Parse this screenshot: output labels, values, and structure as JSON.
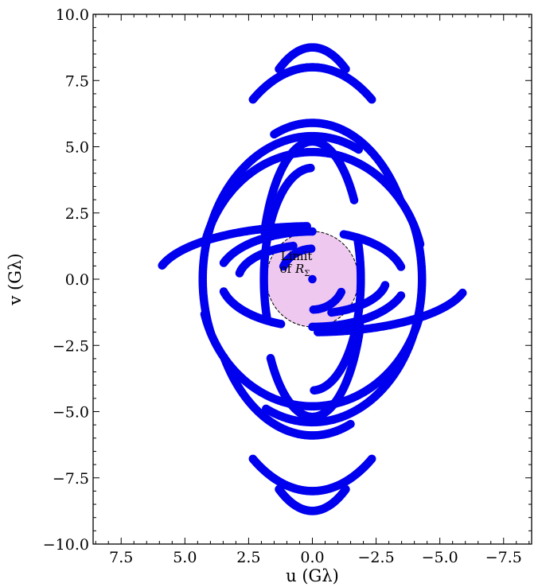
{
  "chart_data": {
    "type": "scatter",
    "xlabel": "u (Gλ)",
    "ylabel": "v (Gλ)",
    "xlim": [
      8.6,
      -8.6
    ],
    "ylim": [
      -10.0,
      10.0
    ],
    "x_ticks": [
      7.5,
      5.0,
      2.5,
      0.0,
      -2.5,
      -5.0,
      -7.5
    ],
    "x_tick_labels": [
      "7.5",
      "5.0",
      "2.5",
      "0.0",
      "−2.5",
      "−5.0",
      "−7.5"
    ],
    "y_ticks": [
      10.0,
      7.5,
      5.0,
      2.5,
      0.0,
      -2.5,
      -5.0,
      -7.5,
      -10.0
    ],
    "y_tick_labels": [
      "10.0",
      "7.5",
      "5.0",
      "2.5",
      "0.0",
      "−2.5",
      "−5.0",
      "−7.5",
      "−10.0"
    ],
    "grid": false,
    "point_color": "#0000ee",
    "annotation": {
      "line1": "Limit",
      "line2": "of ",
      "symbol": "R",
      "subscript": "Σ",
      "region": {
        "center_u": 0.0,
        "center_v": 0.0,
        "radius": 1.8
      },
      "fill": "#efc8ef",
      "edge": "#000000"
    },
    "series": [
      {
        "points": [
          [
            0.0,
            0.0
          ]
        ]
      },
      {
        "arcs": [
          {
            "a": 4.4,
            "b": 8.0,
            "t0": 122,
            "t1": 58
          },
          {
            "a": 3.1,
            "b": 8.75,
            "t0": 115,
            "t1": 65
          },
          {
            "a": 4.4,
            "b": 4.8,
            "t0": 164,
            "t1": 16
          },
          {
            "a": 4.0,
            "b": 5.9,
            "t0": 150,
            "t1": 68
          },
          {
            "a": 2.0,
            "b": 5.2,
            "t0": 145,
            "t1": 20
          },
          {
            "a": 4.3,
            "b": 5.4,
            "t0": 115,
            "t1": -22
          },
          {
            "a": 1.9,
            "b": 4.2,
            "t0": 88,
            "t1": -20
          },
          {
            "a": 6.1,
            "b": 2.0,
            "t0": 88,
            "t1": 15
          },
          {
            "a": 3.7,
            "b": 1.8,
            "t0": 90,
            "t1": 20
          },
          {
            "a": 3.6,
            "b": 1.8,
            "t0": 165,
            "t1": 110
          },
          {
            "a": 2.9,
            "b": 1.3,
            "t0": -105,
            "t1": -170
          },
          {
            "a": 1.25,
            "b": 1.15,
            "t0": 88,
            "t1": 25
          },
          {
            "a": 4.4,
            "b": 8.0,
            "t0": -58,
            "t1": -122
          },
          {
            "a": 3.1,
            "b": 8.75,
            "t0": -65,
            "t1": -115
          },
          {
            "a": 4.4,
            "b": 4.8,
            "t0": -16,
            "t1": -164
          },
          {
            "a": 4.0,
            "b": 5.9,
            "t0": -30,
            "t1": -112
          },
          {
            "a": 2.0,
            "b": 5.2,
            "t0": -35,
            "t1": -160
          },
          {
            "a": 4.3,
            "b": 5.4,
            "t0": -65,
            "t1": -202
          },
          {
            "a": 1.9,
            "b": 4.2,
            "t0": -92,
            "t1": -200
          },
          {
            "a": 6.1,
            "b": 2.0,
            "t0": -92,
            "t1": -165
          },
          {
            "a": 3.7,
            "b": 1.8,
            "t0": -90,
            "t1": -160
          },
          {
            "a": 3.6,
            "b": 1.8,
            "t0": -15,
            "t1": -70
          },
          {
            "a": 2.9,
            "b": 1.3,
            "t0": 75,
            "t1": 10
          },
          {
            "a": 1.25,
            "b": 1.15,
            "t0": -92,
            "t1": -155
          }
        ]
      }
    ]
  }
}
